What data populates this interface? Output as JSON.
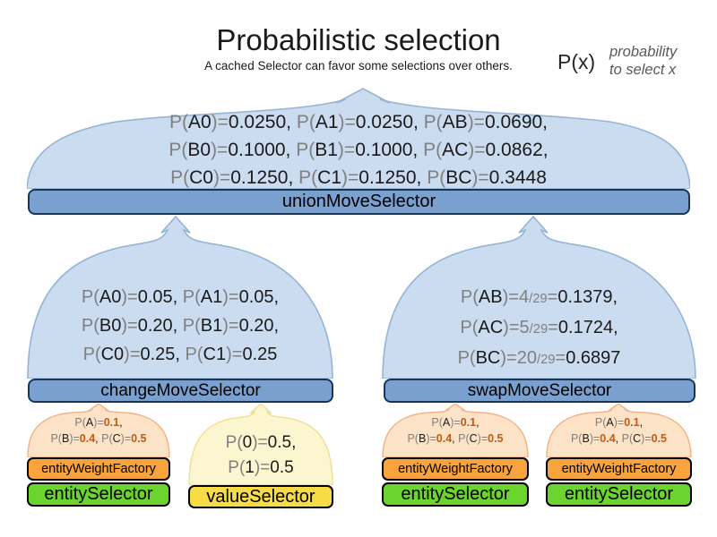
{
  "header": {
    "title": "Probabilistic selection",
    "subtitle": "A cached Selector can favor some selections over others.",
    "legend": {
      "symbol": "P(x)",
      "note_line1": "probability",
      "note_line2": "to select x"
    }
  },
  "colors": {
    "blue_funnel_fill": "#CBDCF0",
    "blue_funnel_stroke": "#96B4D6",
    "blue_bar_fill": "#7AA0CF",
    "blue_bar_border": "#16365C",
    "orange_funnel_fill": "#FCE3C7",
    "orange_funnel_stroke": "#F4B183",
    "yellow_funnel_fill": "#FBF6CF",
    "yellow_funnel_stroke": "#EDE18C",
    "orange_bar_fill": "#F8A33B",
    "green_bar_fill": "#6BD42F",
    "yellow_bar_fill": "#F8DC45",
    "gray_text": "#808080",
    "black_text": "#1A1A1A",
    "orange_value_text": "#C45911"
  },
  "union": {
    "bar_label": "unionMoveSelector",
    "lines": [
      [
        {
          "t": "P(",
          "c": "g"
        },
        {
          "t": "A0",
          "c": "b"
        },
        {
          "t": ")=",
          "c": "g"
        },
        {
          "t": "0.0250, ",
          "c": "b"
        },
        {
          "t": "P(",
          "c": "g"
        },
        {
          "t": "A1",
          "c": "b"
        },
        {
          "t": ")=",
          "c": "g"
        },
        {
          "t": "0.0250, ",
          "c": "b"
        },
        {
          "t": "P(",
          "c": "g"
        },
        {
          "t": "AB",
          "c": "b"
        },
        {
          "t": ")=",
          "c": "g"
        },
        {
          "t": "0.0690,",
          "c": "b"
        }
      ],
      [
        {
          "t": "P(",
          "c": "g"
        },
        {
          "t": "B0",
          "c": "b"
        },
        {
          "t": ")=",
          "c": "g"
        },
        {
          "t": "0.1000, ",
          "c": "b"
        },
        {
          "t": "P(",
          "c": "g"
        },
        {
          "t": "B1",
          "c": "b"
        },
        {
          "t": ")=",
          "c": "g"
        },
        {
          "t": "0.1000, ",
          "c": "b"
        },
        {
          "t": "P(",
          "c": "g"
        },
        {
          "t": "AC",
          "c": "b"
        },
        {
          "t": ")=",
          "c": "g"
        },
        {
          "t": "0.0862,",
          "c": "b"
        }
      ],
      [
        {
          "t": "P(",
          "c": "g"
        },
        {
          "t": "C0",
          "c": "b"
        },
        {
          "t": ")=",
          "c": "g"
        },
        {
          "t": "0.1250, ",
          "c": "b"
        },
        {
          "t": "P(",
          "c": "g"
        },
        {
          "t": "C1",
          "c": "b"
        },
        {
          "t": ")=",
          "c": "g"
        },
        {
          "t": "0.1250, ",
          "c": "b"
        },
        {
          "t": "P(",
          "c": "g"
        },
        {
          "t": "BC",
          "c": "b"
        },
        {
          "t": ")=",
          "c": "g"
        },
        {
          "t": "0.3448",
          "c": "b"
        }
      ]
    ]
  },
  "change": {
    "bar_label": "changeMoveSelector",
    "lines": [
      [
        {
          "t": "P(",
          "c": "g"
        },
        {
          "t": "A0",
          "c": "b"
        },
        {
          "t": ")=",
          "c": "g"
        },
        {
          "t": "0.05, ",
          "c": "b"
        },
        {
          "t": "P(",
          "c": "g"
        },
        {
          "t": "A1",
          "c": "b"
        },
        {
          "t": ")=",
          "c": "g"
        },
        {
          "t": "0.05,",
          "c": "b"
        }
      ],
      [
        {
          "t": "P(",
          "c": "g"
        },
        {
          "t": "B0",
          "c": "b"
        },
        {
          "t": ")=",
          "c": "g"
        },
        {
          "t": "0.20, ",
          "c": "b"
        },
        {
          "t": "P(",
          "c": "g"
        },
        {
          "t": "B1",
          "c": "b"
        },
        {
          "t": ")=",
          "c": "g"
        },
        {
          "t": "0.20,",
          "c": "b"
        }
      ],
      [
        {
          "t": "P(",
          "c": "g"
        },
        {
          "t": "C0",
          "c": "b"
        },
        {
          "t": ")=",
          "c": "g"
        },
        {
          "t": "0.25, ",
          "c": "b"
        },
        {
          "t": "P(",
          "c": "g"
        },
        {
          "t": "C1",
          "c": "b"
        },
        {
          "t": ")=",
          "c": "g"
        },
        {
          "t": "0.25",
          "c": "b"
        }
      ]
    ]
  },
  "swap": {
    "bar_label": "swapMoveSelector",
    "lines": [
      [
        {
          "t": "P(",
          "c": "g"
        },
        {
          "t": "AB",
          "c": "b"
        },
        {
          "t": ")=",
          "c": "g"
        },
        {
          "t": "4",
          "c": "g"
        },
        {
          "t": "/29",
          "c": "f"
        },
        {
          "t": "=",
          "c": "g"
        },
        {
          "t": "0.1379,",
          "c": "b"
        }
      ],
      [
        {
          "t": "P(",
          "c": "g"
        },
        {
          "t": "AC",
          "c": "b"
        },
        {
          "t": ")=",
          "c": "g"
        },
        {
          "t": "5",
          "c": "g"
        },
        {
          "t": "/29",
          "c": "f"
        },
        {
          "t": "=",
          "c": "g"
        },
        {
          "t": "0.1724,",
          "c": "b"
        }
      ],
      [
        {
          "t": "P(",
          "c": "g"
        },
        {
          "t": "BC",
          "c": "b"
        },
        {
          "t": ")=",
          "c": "g"
        },
        {
          "t": "20",
          "c": "g"
        },
        {
          "t": "/29",
          "c": "f"
        },
        {
          "t": "=",
          "c": "g"
        },
        {
          "t": "0.6897",
          "c": "b"
        }
      ]
    ]
  },
  "entityWeight": {
    "factory_label": "entityWeightFactory",
    "selector_label": "entitySelector",
    "lines": [
      [
        {
          "t": "P(",
          "c": "g"
        },
        {
          "t": "A",
          "c": "b"
        },
        {
          "t": ")=",
          "c": "g"
        },
        {
          "t": "0.1",
          "c": "o"
        },
        {
          "t": ",",
          "c": "b"
        }
      ],
      [
        {
          "t": "P(",
          "c": "g"
        },
        {
          "t": "B",
          "c": "b"
        },
        {
          "t": ")=",
          "c": "g"
        },
        {
          "t": "0.4",
          "c": "o"
        },
        {
          "t": ", ",
          "c": "b"
        },
        {
          "t": "P(",
          "c": "g"
        },
        {
          "t": "C",
          "c": "b"
        },
        {
          "t": ")=",
          "c": "g"
        },
        {
          "t": "0.5",
          "c": "o"
        }
      ]
    ]
  },
  "value": {
    "bar_label": "valueSelector",
    "lines": [
      [
        {
          "t": "P(",
          "c": "g"
        },
        {
          "t": "0",
          "c": "b"
        },
        {
          "t": ")=",
          "c": "g"
        },
        {
          "t": "0.5,",
          "c": "b"
        }
      ],
      [
        {
          "t": "P(",
          "c": "g"
        },
        {
          "t": "1",
          "c": "b"
        },
        {
          "t": ")=",
          "c": "g"
        },
        {
          "t": "0.5",
          "c": "b"
        }
      ]
    ]
  }
}
